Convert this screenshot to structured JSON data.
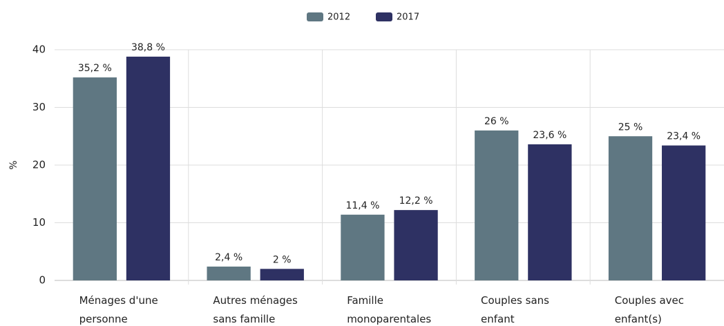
{
  "chart_data": {
    "type": "bar",
    "categories": [
      "Ménages d'une personne",
      "Autres ménages sans famille",
      "Famille monoparentales",
      "Couples sans enfant",
      "Couples avec enfant(s)"
    ],
    "series": [
      {
        "name": "2012",
        "color": "#5f7782",
        "values": [
          35.2,
          2.4,
          11.4,
          26,
          25
        ],
        "value_labels": [
          "35,2 %",
          "2,4 %",
          "11,4 %",
          "26 %",
          "25 %"
        ]
      },
      {
        "name": "2017",
        "color": "#2e3163",
        "values": [
          38.8,
          2,
          12.2,
          23.6,
          23.4
        ],
        "value_labels": [
          "38,8 %",
          "2 %",
          "12,2 %",
          "23,6 %",
          "23,4 %"
        ]
      }
    ],
    "ylabel": "%",
    "ylim": [
      0,
      40
    ],
    "yticks": [
      0,
      10,
      20,
      30,
      40
    ],
    "grid": true,
    "legend": "top"
  }
}
